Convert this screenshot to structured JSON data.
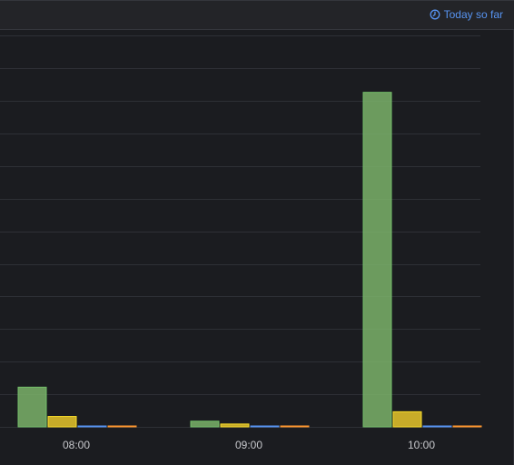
{
  "header": {
    "time_range_label": "Today so far",
    "icon": "clock-icon"
  },
  "colors": {
    "background": "#1b1c20",
    "grid": "#2e3036",
    "series": [
      "#73bf69",
      "#fade2a",
      "#5794f2",
      "#ff9830"
    ]
  },
  "chart_data": {
    "type": "bar",
    "categories": [
      "08:00",
      "09:00",
      "10:00"
    ],
    "series": [
      {
        "values": [
          42,
          6,
          354
        ]
      },
      {
        "values": [
          11,
          3,
          16
        ]
      },
      {
        "values": [
          0.5,
          0.5,
          0.5
        ]
      },
      {
        "values": [
          0.5,
          0.5,
          0.5
        ]
      }
    ],
    "ylim": [
      0,
      420
    ],
    "y_tick_step": 34.5,
    "grid": true,
    "y_axis_labels_visible": false,
    "legend": "none"
  }
}
